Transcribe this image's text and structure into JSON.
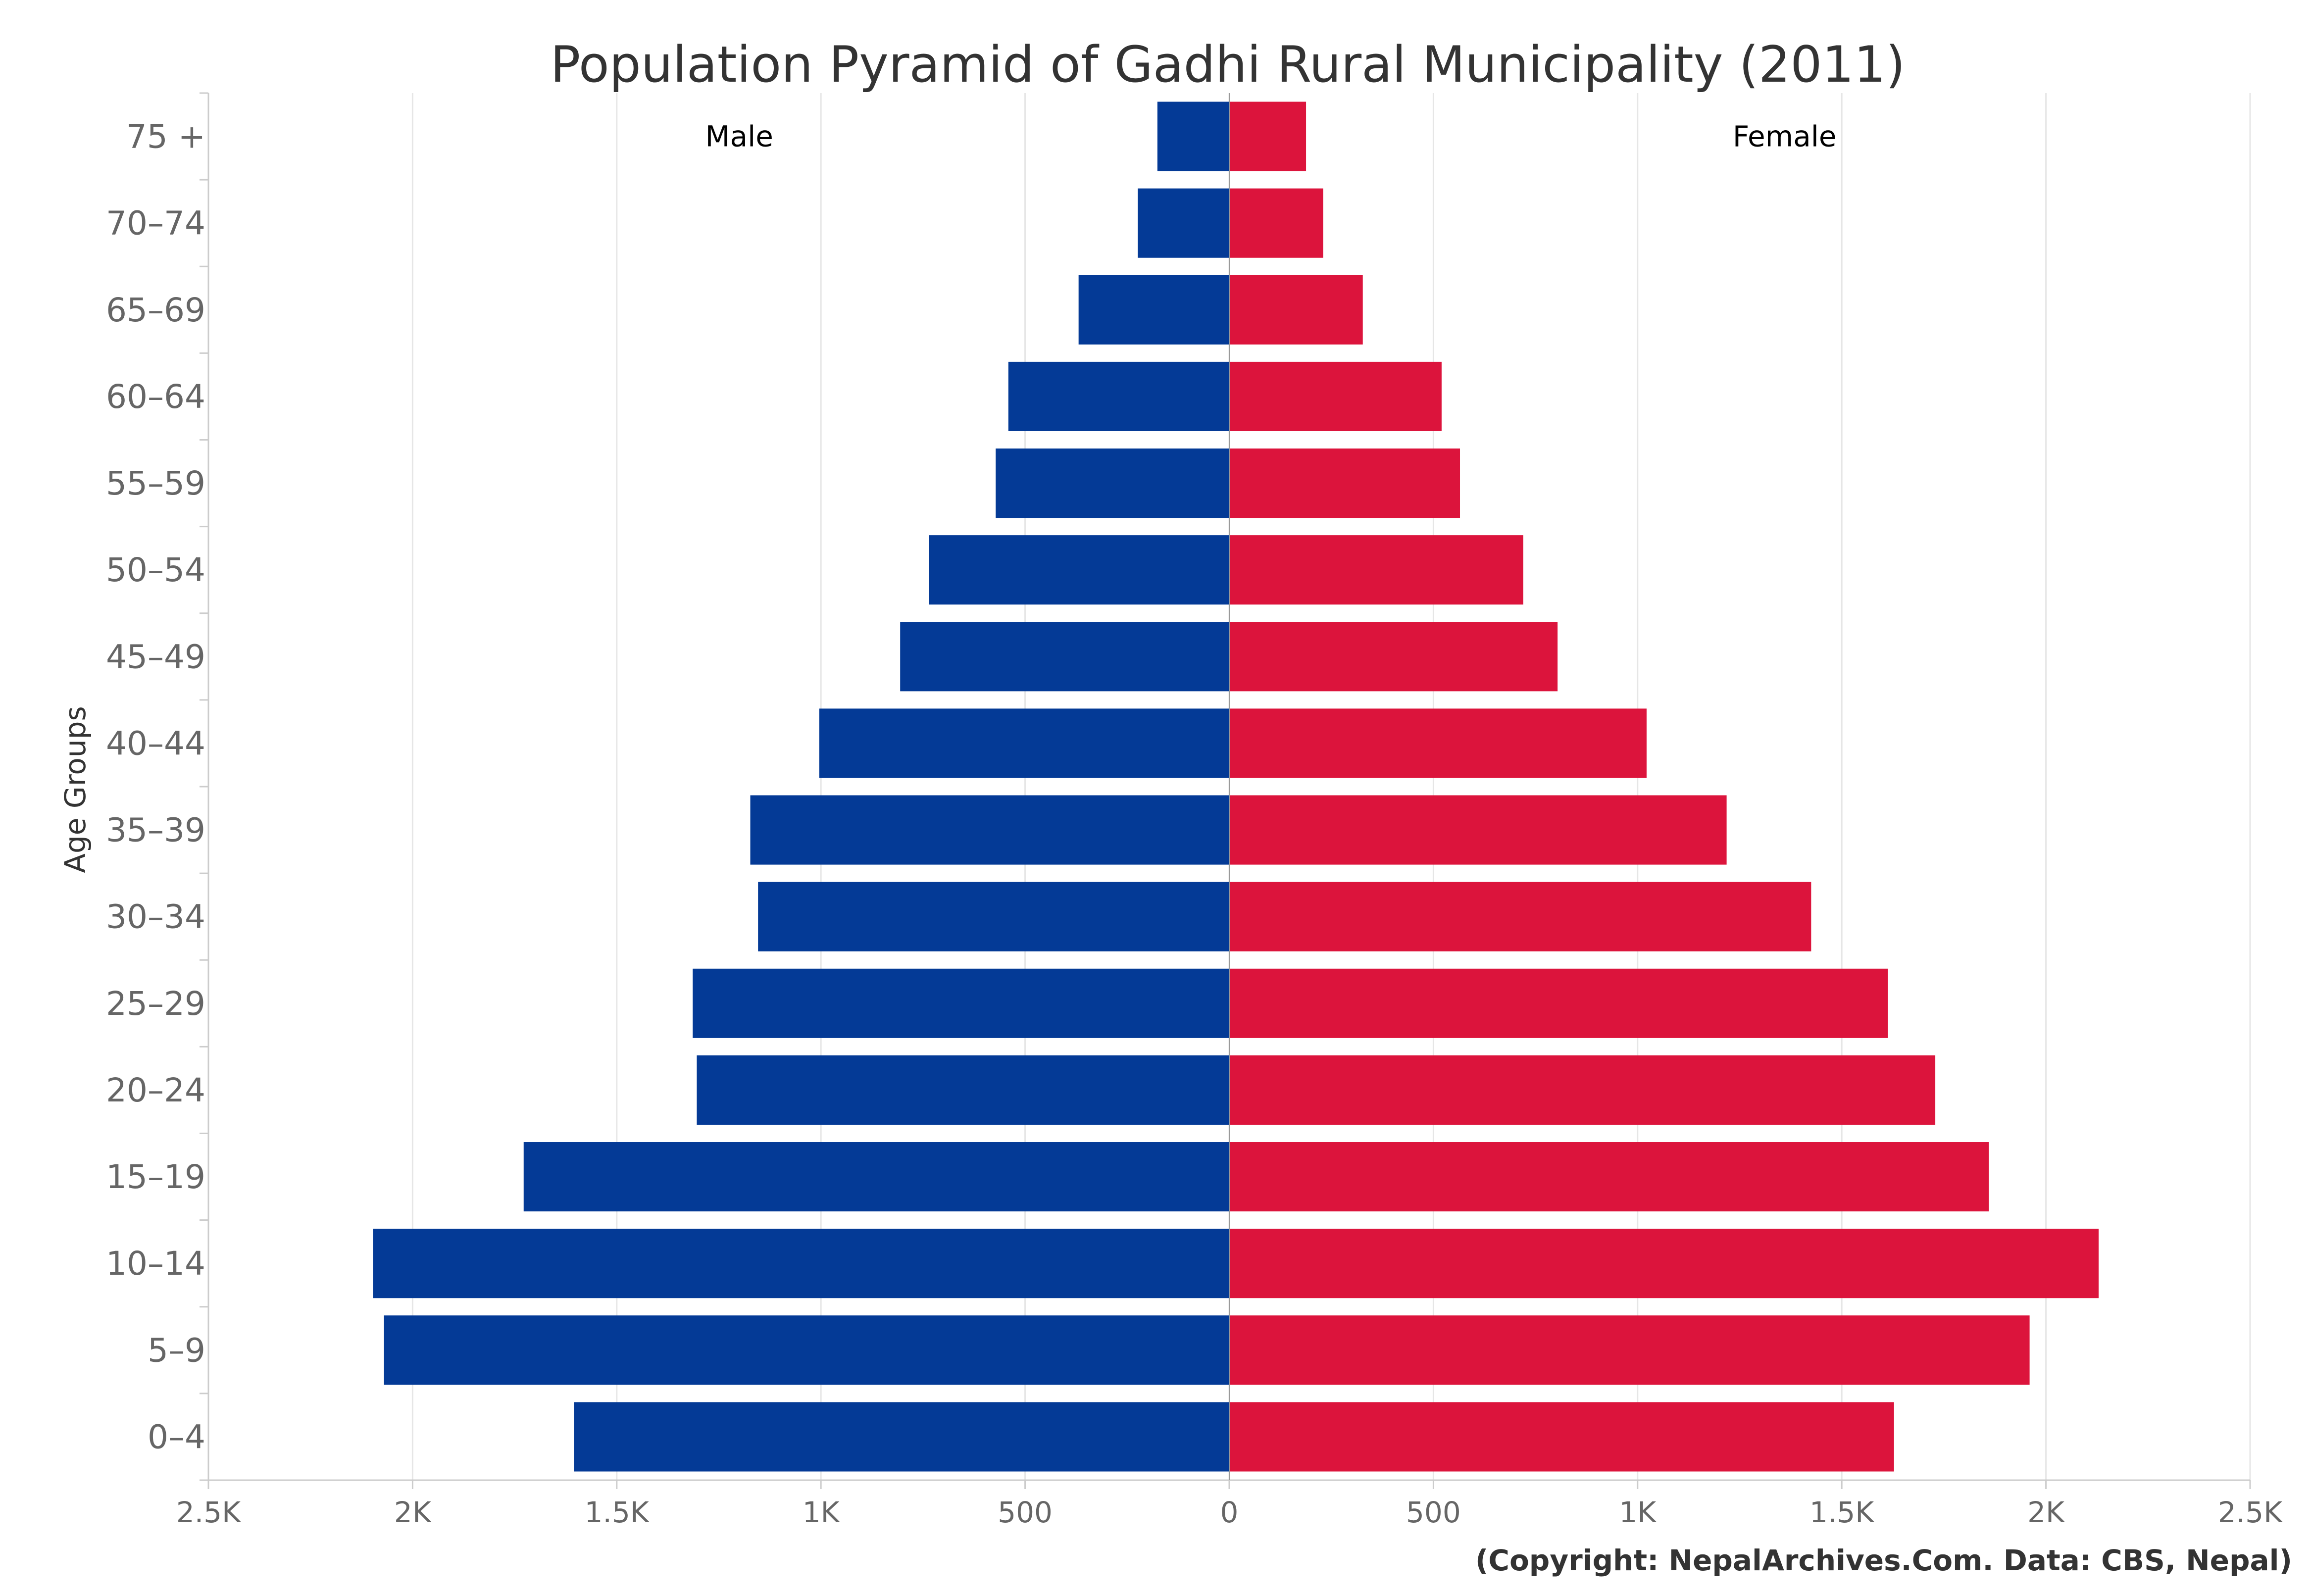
{
  "chart_data": {
    "type": "bar",
    "orientation": "horizontal",
    "title": "Population Pyramid of Gadhi Rural Municipality (2011)",
    "ylabel": "Age Groups",
    "xlabel": "",
    "credit": "(Copyright: NepalArchives.Com. Data: CBS, Nepal)",
    "categories": [
      "0-4",
      "5-9",
      "10-14",
      "15-19",
      "20-24",
      "25-29",
      "30-34",
      "35-39",
      "40-44",
      "45-49",
      "50-54",
      "55-59",
      "60-64",
      "65-69",
      "70-74",
      "75 +"
    ],
    "series": [
      {
        "name": "Male",
        "color": "#043a96",
        "values": [
          1605,
          2070,
          2097,
          1728,
          1304,
          1314,
          1154,
          1173,
          1004,
          806,
          735,
          572,
          541,
          369,
          224,
          176
        ]
      },
      {
        "name": "Female",
        "color": "#dc143c",
        "values": [
          1628,
          1960,
          2129,
          1860,
          1729,
          1613,
          1425,
          1218,
          1022,
          804,
          720,
          565,
          520,
          327,
          230,
          188
        ]
      }
    ],
    "xlim": [
      -2500,
      2500
    ],
    "xticks": [
      {
        "value": -2500,
        "label": "2.5K"
      },
      {
        "value": -2000,
        "label": "2K"
      },
      {
        "value": -1500,
        "label": "1.5K"
      },
      {
        "value": -1000,
        "label": "1K"
      },
      {
        "value": -500,
        "label": "500"
      },
      {
        "value": 0,
        "label": "0"
      },
      {
        "value": 500,
        "label": "500"
      },
      {
        "value": 1000,
        "label": "1K"
      },
      {
        "value": 1500,
        "label": "1.5K"
      },
      {
        "value": 2000,
        "label": "2K"
      },
      {
        "value": 2500,
        "label": "2.5K"
      }
    ],
    "grid": true,
    "legend": "inline labels at top (Male left, Female right)"
  }
}
